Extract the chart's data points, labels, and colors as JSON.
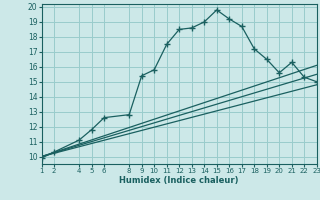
{
  "xlabel": "Humidex (Indice chaleur)",
  "ylabel": "",
  "xlim": [
    1,
    23
  ],
  "ylim": [
    9.5,
    20.2
  ],
  "yticks": [
    10,
    11,
    12,
    13,
    14,
    15,
    16,
    17,
    18,
    19,
    20
  ],
  "xticks": [
    1,
    2,
    4,
    5,
    6,
    8,
    9,
    10,
    11,
    12,
    13,
    14,
    15,
    16,
    17,
    18,
    19,
    20,
    21,
    22,
    23
  ],
  "bg_color": "#cce8e8",
  "grid_color": "#99cccc",
  "line_color": "#1a6060",
  "main_x": [
    1,
    2,
    4,
    5,
    6,
    8,
    9,
    10,
    11,
    12,
    13,
    14,
    15,
    16,
    17,
    18,
    19,
    20,
    21,
    22,
    23
  ],
  "main_y": [
    9.9,
    10.3,
    11.1,
    11.8,
    12.6,
    12.8,
    15.4,
    15.8,
    17.5,
    18.5,
    18.6,
    19.0,
    19.8,
    19.2,
    18.7,
    17.2,
    16.5,
    15.6,
    16.3,
    15.3,
    15.0
  ],
  "line1_x": [
    1,
    23
  ],
  "line1_y": [
    10.0,
    14.8
  ],
  "line2_x": [
    1,
    23
  ],
  "line2_y": [
    10.0,
    15.5
  ],
  "line3_x": [
    1,
    23
  ],
  "line3_y": [
    10.0,
    16.1
  ]
}
